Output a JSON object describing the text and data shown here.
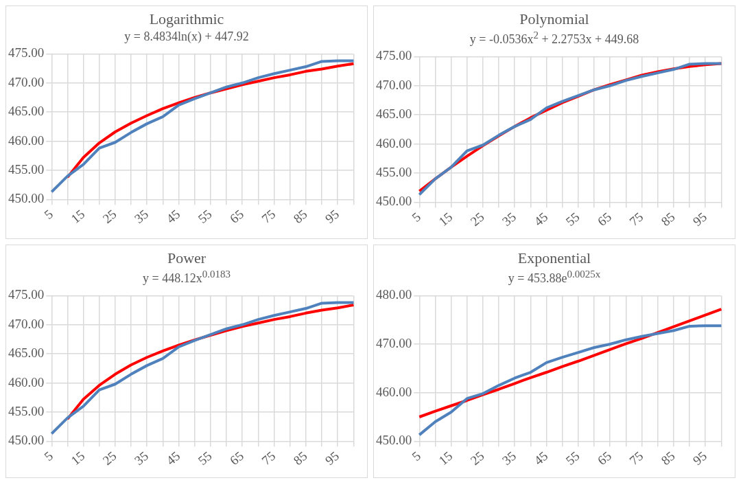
{
  "chart_data": [
    {
      "type": "line",
      "title": "Logarithmic",
      "subtitle": "y = 8.4834ln(x) + 447.92",
      "categories": [
        "5",
        null,
        "15",
        null,
        "25",
        null,
        "35",
        null,
        "45",
        null,
        "55",
        null,
        "65",
        null,
        "75",
        null,
        "85",
        null,
        "95",
        null
      ],
      "ylim": [
        450,
        475
      ],
      "yticks": [
        {
          "value": 450,
          "label": "450.00"
        },
        {
          "value": 455,
          "label": "455.00"
        },
        {
          "value": 460,
          "label": "460.00"
        },
        {
          "value": 465,
          "label": "465.00"
        },
        {
          "value": 470,
          "label": "470.00"
        },
        {
          "value": 475,
          "label": "475.00"
        }
      ],
      "grid": true,
      "legend": false,
      "marker": "none",
      "series": [
        {
          "color": "#4f81bd",
          "values": [
            451.3,
            454.0,
            456.0,
            458.8,
            459.8,
            461.5,
            463.0,
            464.2,
            466.2,
            467.3,
            468.3,
            469.3,
            470.0,
            470.9,
            471.6,
            472.2,
            472.8,
            473.7,
            473.8,
            473.8
          ]
        },
        {
          "color": "#ff0000",
          "values": [
            null,
            453.8,
            457.2,
            459.7,
            461.6,
            463.1,
            464.4,
            465.6,
            466.6,
            467.5,
            468.3,
            469.0,
            469.7,
            470.3,
            470.9,
            471.4,
            472.0,
            472.4,
            472.9,
            473.3
          ]
        }
      ]
    },
    {
      "type": "line",
      "title": "Polynomial",
      "subtitle": "y = -0.0536x$^{2}$ + 2.2753x + 449.68",
      "categories": [
        "5",
        null,
        "15",
        null,
        "25",
        null,
        "35",
        null,
        "45",
        null,
        "55",
        null,
        "65",
        null,
        "75",
        null,
        "85",
        null,
        "95",
        null
      ],
      "ylim": [
        450,
        475
      ],
      "yticks": [
        {
          "value": 450,
          "label": "450.00"
        },
        {
          "value": 455,
          "label": "455.00"
        },
        {
          "value": 460,
          "label": "460.00"
        },
        {
          "value": 465,
          "label": "465.00"
        },
        {
          "value": 470,
          "label": "470.00"
        },
        {
          "value": 475,
          "label": "475.00"
        }
      ],
      "grid": true,
      "legend": false,
      "marker": "none",
      "series": [
        {
          "color": "#4f81bd",
          "values": [
            451.3,
            454.0,
            456.0,
            458.8,
            459.8,
            461.5,
            463.0,
            464.2,
            466.2,
            467.3,
            468.3,
            469.3,
            470.0,
            470.9,
            471.6,
            472.2,
            472.8,
            473.7,
            473.8,
            473.8
          ]
        },
        {
          "color": "#ff0000",
          "values": [
            451.9,
            454.0,
            456.0,
            457.9,
            459.7,
            461.4,
            463.0,
            464.5,
            465.8,
            467.1,
            468.2,
            469.3,
            470.2,
            471.0,
            471.8,
            472.4,
            472.9,
            473.3,
            473.6,
            473.8
          ]
        }
      ]
    },
    {
      "type": "line",
      "title": "Power",
      "subtitle": "y = 448.12x$^{0.0183}$",
      "categories": [
        "5",
        null,
        "15",
        null,
        "25",
        null,
        "35",
        null,
        "45",
        null,
        "55",
        null,
        "65",
        null,
        "75",
        null,
        "85",
        null,
        "95",
        null
      ],
      "ylim": [
        450,
        475
      ],
      "yticks": [
        {
          "value": 450,
          "label": "450.00"
        },
        {
          "value": 455,
          "label": "455.00"
        },
        {
          "value": 460,
          "label": "460.00"
        },
        {
          "value": 465,
          "label": "465.00"
        },
        {
          "value": 470,
          "label": "470.00"
        },
        {
          "value": 475,
          "label": "475.00"
        }
      ],
      "grid": true,
      "legend": false,
      "marker": "none",
      "series": [
        {
          "color": "#4f81bd",
          "values": [
            451.3,
            454.0,
            456.0,
            458.8,
            459.8,
            461.5,
            463.0,
            464.2,
            466.2,
            467.3,
            468.3,
            469.3,
            470.0,
            470.9,
            471.6,
            472.2,
            472.8,
            473.7,
            473.8,
            473.8
          ]
        },
        {
          "color": "#ff0000",
          "values": [
            null,
            453.8,
            457.2,
            459.6,
            461.5,
            463.1,
            464.4,
            465.5,
            466.5,
            467.4,
            468.2,
            469.0,
            469.7,
            470.3,
            470.9,
            471.4,
            472.0,
            472.5,
            472.9,
            473.4
          ]
        }
      ]
    },
    {
      "type": "line",
      "title": "Exponential",
      "subtitle": "y = 453.88e$^{0.0025x}$",
      "categories": [
        "5",
        null,
        "15",
        null,
        "25",
        null,
        "35",
        null,
        "45",
        null,
        "55",
        null,
        "65",
        null,
        "75",
        null,
        "85",
        null,
        "95",
        null
      ],
      "ylim": [
        450,
        480
      ],
      "yticks": [
        {
          "value": 450,
          "label": "450.00"
        },
        {
          "value": 460,
          "label": "460.00"
        },
        {
          "value": 470,
          "label": "470.00"
        },
        {
          "value": 480,
          "label": "480.00"
        }
      ],
      "grid": true,
      "legend": false,
      "marker": "none",
      "series": [
        {
          "color": "#4f81bd",
          "values": [
            451.3,
            454.0,
            456.0,
            458.8,
            459.8,
            461.5,
            463.0,
            464.2,
            466.2,
            467.3,
            468.3,
            469.3,
            470.0,
            470.9,
            471.6,
            472.2,
            472.8,
            473.7,
            473.8,
            473.8
          ]
        },
        {
          "color": "#ff0000",
          "values": [
            455.0,
            456.2,
            457.3,
            458.4,
            459.6,
            460.7,
            461.9,
            463.1,
            464.2,
            465.4,
            466.5,
            467.7,
            468.9,
            470.1,
            471.2,
            472.4,
            473.6,
            474.8,
            476.0,
            477.2
          ]
        }
      ]
    }
  ]
}
